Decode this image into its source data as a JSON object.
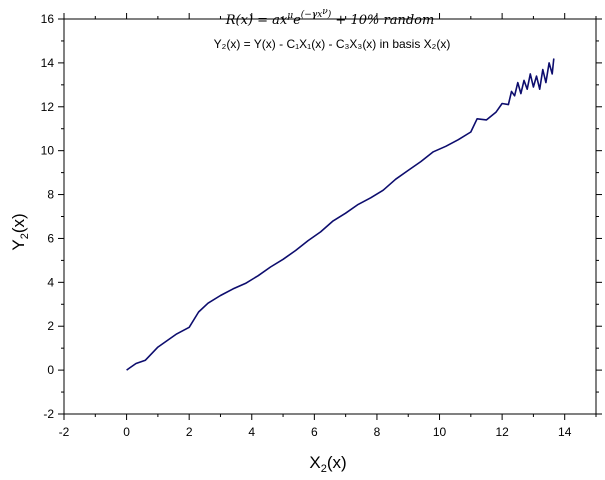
{
  "chart_data": {
    "type": "line",
    "title_formula": {
      "lhs": "R(x) = ax",
      "sup_mu": "μ",
      "e": "e",
      "sup_exp": "(−γx",
      "sup_nu": "ν",
      "sup_close": ")",
      "rest": " + 10% random"
    },
    "subtitle": "Y₂(x) = Y(x) - C₁X₁(x) - C₃X₃(x) in basis X₂(x)",
    "xlabel": {
      "main": "X",
      "sub": "2",
      "tail": "(x)"
    },
    "ylabel": {
      "main": "Y",
      "sub": "2",
      "tail": "(x)"
    },
    "xlim": [
      -2,
      15
    ],
    "ylim": [
      -2,
      16
    ],
    "xticks": [
      "-2",
      "0",
      "2",
      "4",
      "6",
      "8",
      "10",
      "12",
      "14"
    ],
    "yticks": [
      "-2",
      "0",
      "2",
      "4",
      "6",
      "8",
      "10",
      "12",
      "14",
      "16"
    ],
    "grid": false,
    "line_color": "#0d0d6e",
    "series": [
      {
        "x": [
          0.0,
          0.1,
          0.3,
          0.6,
          0.8,
          1.0,
          1.3,
          1.6,
          2.0,
          2.3,
          2.6,
          3.0,
          3.4,
          3.8,
          4.2,
          4.6,
          5.0,
          5.4,
          5.8,
          6.2,
          6.6,
          7.0,
          7.4,
          7.8,
          8.2,
          8.6,
          9.0,
          9.4,
          9.8,
          10.2,
          10.6,
          11.0,
          11.2,
          11.5,
          11.8,
          12.0,
          12.2,
          12.3,
          12.4,
          12.5,
          12.6,
          12.7,
          12.8,
          12.9,
          13.0,
          13.1,
          13.2,
          13.3,
          13.4,
          13.5,
          13.6,
          13.65
        ],
        "y": [
          0.0,
          0.1,
          0.3,
          0.45,
          0.75,
          1.05,
          1.35,
          1.65,
          1.95,
          2.65,
          3.05,
          3.4,
          3.7,
          3.95,
          4.3,
          4.7,
          5.05,
          5.45,
          5.9,
          6.3,
          6.8,
          7.15,
          7.55,
          7.85,
          8.2,
          8.7,
          9.1,
          9.5,
          9.95,
          10.2,
          10.5,
          10.85,
          11.45,
          11.4,
          11.75,
          12.15,
          12.1,
          12.7,
          12.5,
          13.1,
          12.6,
          13.2,
          12.8,
          13.5,
          12.9,
          13.4,
          12.8,
          13.7,
          13.1,
          14.0,
          13.5,
          14.2
        ]
      }
    ]
  }
}
